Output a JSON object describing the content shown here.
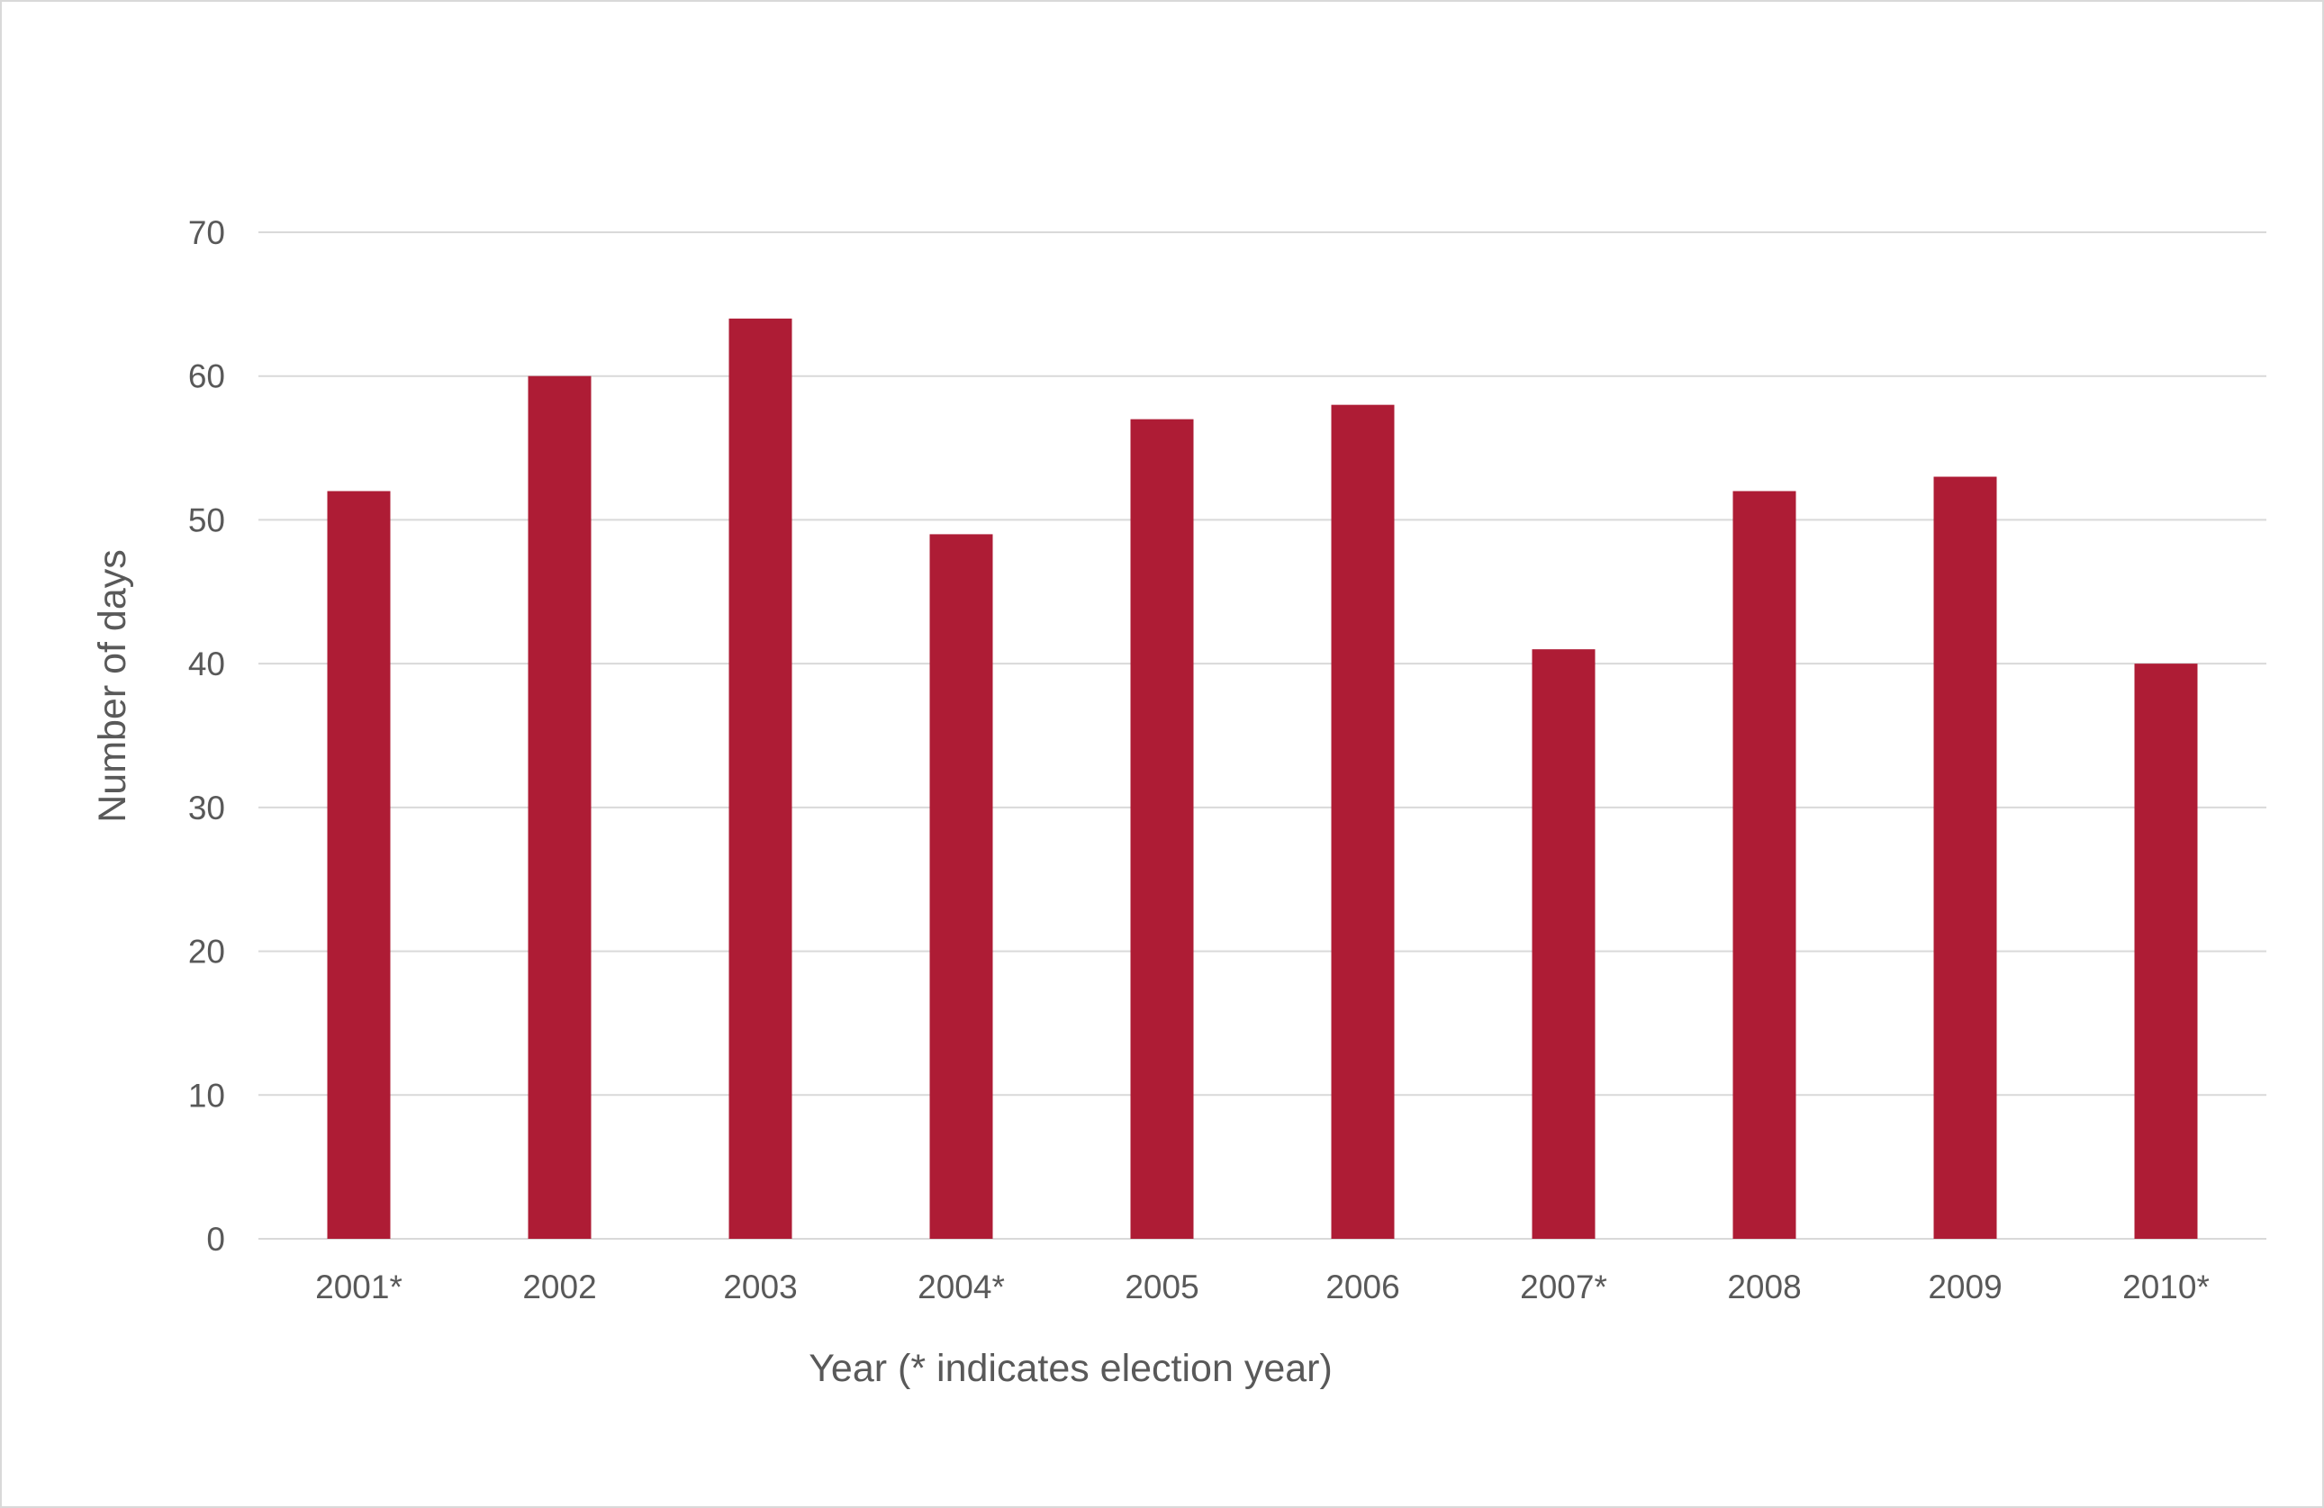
{
  "chart_data": {
    "type": "bar",
    "title": "",
    "xlabel": "Year (* indicates election year)",
    "ylabel": "Number of days",
    "categories": [
      "2001*",
      "2002",
      "2003",
      "2004*",
      "2005",
      "2006",
      "2007*",
      "2008",
      "2009",
      "2010*"
    ],
    "values": [
      52,
      60,
      64,
      49,
      57,
      58,
      41,
      52,
      53,
      40
    ],
    "ylim": [
      0,
      70
    ],
    "yticks": [
      0,
      10,
      20,
      30,
      40,
      50,
      60,
      70
    ],
    "grid": true,
    "legend": "none",
    "colors": {
      "bar": "#ae1c35",
      "gridline": "#d9d9d9",
      "text": "#595959",
      "border": "#d9d9d9"
    }
  }
}
